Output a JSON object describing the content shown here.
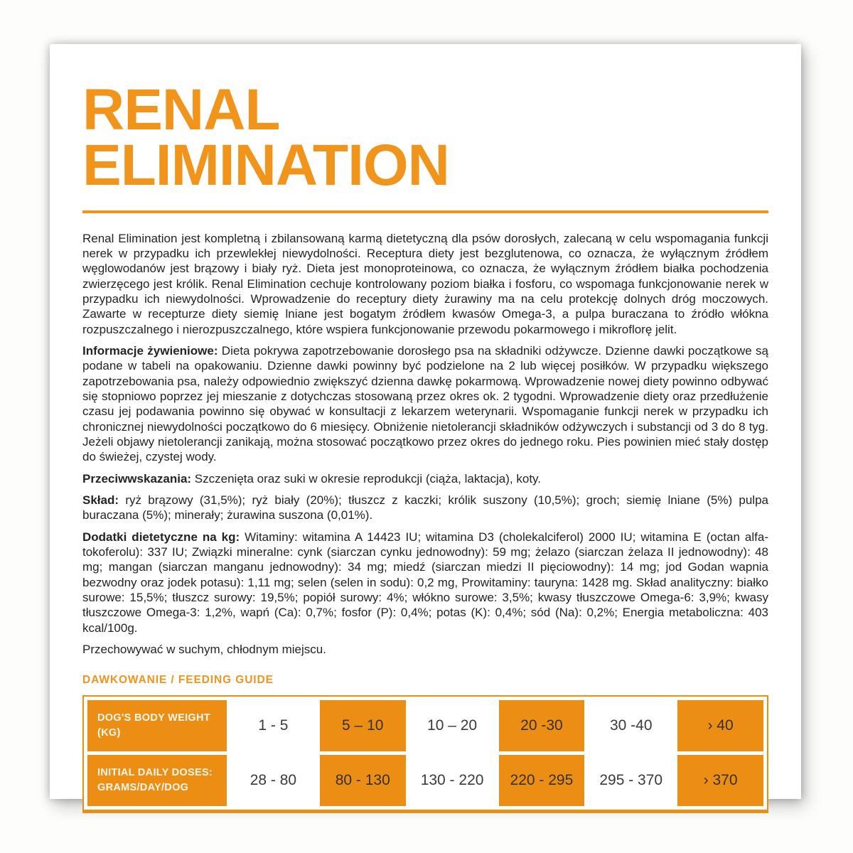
{
  "colors": {
    "accent_orange": "#F0941C",
    "cell_orange": "#EC8E13",
    "table_border_orange": "#E8900F",
    "body_text": "#262323"
  },
  "header": {
    "title_line1": "RENAL",
    "title_line2": "ELIMINATION"
  },
  "content": {
    "paragraphs": [
      {
        "label": "",
        "text": "Renal Elimination jest kompletną i zbilansowaną karmą dietetyczną dla psów dorosłych, zalecaną w celu wspomagania funkcji nerek w przypadku ich przewlekłej niewydolności. Receptura diety jest bezglutenowa, co oznacza, że wyłącznym źródłem węglowodanów jest brązowy i biały ryż. Dieta jest monoproteinowa, co oznacza, że wyłącznym źródłem białka pochodzenia zwierzęcego jest królik. Renal Elimination cechuje kontrolowany poziom białka i fosforu, co wspomaga funkcjonowanie nerek w przypadku ich niewydolności. Wprowadzenie do receptury diety żurawiny ma na celu protekcję dolnych dróg moczowych. Zawarte w recepturze diety siemię lniane jest bogatym źródłem kwasów Omega-3, a pulpa buraczana to źródło włókna rozpuszczalnego i nierozpuszczalnego, które wspiera funkcjonowanie przewodu pokarmowego i mikroflorę jelit."
      },
      {
        "label": "Informacje żywieniowe:",
        "text": " Dieta pokrywa zapotrzebowanie dorosłego psa na składniki odżywcze. Dzienne dawki początkowe są podane w tabeli na opakowaniu. Dzienne dawki powinny być podzielone na 2 lub więcej posiłków. W przypadku większego zapotrzebowania psa, należy odpowiednio zwiększyć dzienna dawkę pokarmową. Wprowadzenie nowej diety powinno odbywać się stopniowo poprzez jej mieszanie z dotychczas stosowaną przez okres ok. 2 tygodni. Wprowadzenie diety oraz przedłużenie czasu jej podawania powinno się obywać w konsultacji z lekarzem weterynarii. Wspomaganie funkcji nerek w przypadku ich chronicznej niewydolności początkowo do 6 miesięcy. Obniżenie nietolerancji składników odżywczych i substancji od 3 do 8 tyg. Jeżeli objawy nietolerancji zanikają, można stosować początkowo przez okres do jednego roku. Pies powinien mieć stały dostęp do świeżej, czystej wody."
      },
      {
        "label": "Przeciwwskazania:",
        "text": " Szczenięta oraz suki w okresie reprodukcji (ciąża, laktacja), koty."
      },
      {
        "label": "Skład:",
        "text": " ryż brązowy (31,5%); ryż biały (20%); tłuszcz z kaczki; królik suszony (10,5%); groch; siemię lniane (5%) pulpa buraczana (5%); minerały; żurawina suszona (0,01%)."
      },
      {
        "label": "Dodatki dietetyczne na kg:",
        "text": " Witaminy: witamina A 14423 IU; witamina D3 (cholekalciferol) 2000 IU; witamina E (octan alfa-tokoferolu): 337 IU; Związki mineralne: cynk (siarczan cynku jednowodny): 59 mg; żelazo (siarczan żelaza II jednowodny): 48 mg; mangan (siarczan manganu jednowodny): 34 mg; miedź (siarczan miedzi II pięciowodny): 14 mg; jod Godan wapnia bezwodny oraz jodek potasu): 1,11 mg; selen (selen in sodu): 0,2 mg, Prowitaminy: tauryna: 1428 mg. Skład analityczny: białko surowe: 15,5%; tłuszcz surowy: 19,5%; popiół surowy: 4%; włókno surowe: 3,5%; kwasy tłuszczowe Omega-6: 3,9%; kwasy tłuszczowe Omega-3: 1,2%, wapń (Ca): 0,7%; fosfor (P): 0,4%; potas (K): 0,4%; sód (Na): 0,2%; Energia metaboliczna: 403 kcal/100g."
      },
      {
        "label": "",
        "text": "Przechowywać w suchym, chłodnym miejscu."
      }
    ]
  },
  "feeding_table": {
    "heading": "DAWKOWANIE / FEEDING GUIDE",
    "rows": [
      {
        "header_line1": "DOG'S BODY WEIGHT",
        "header_line2": "(KG)",
        "cells": [
          "1 - 5",
          "5 – 10",
          "10 – 20",
          "20 -30",
          "30 -40",
          "› 40"
        ]
      },
      {
        "header_line1": "INITIAL DAILY DOSES:",
        "header_line2": "GRAMS/DAY/DOG",
        "cells": [
          "28 - 80",
          "80 - 130",
          "130 - 220",
          "220 - 295",
          "295 - 370",
          "› 370"
        ]
      }
    ]
  }
}
